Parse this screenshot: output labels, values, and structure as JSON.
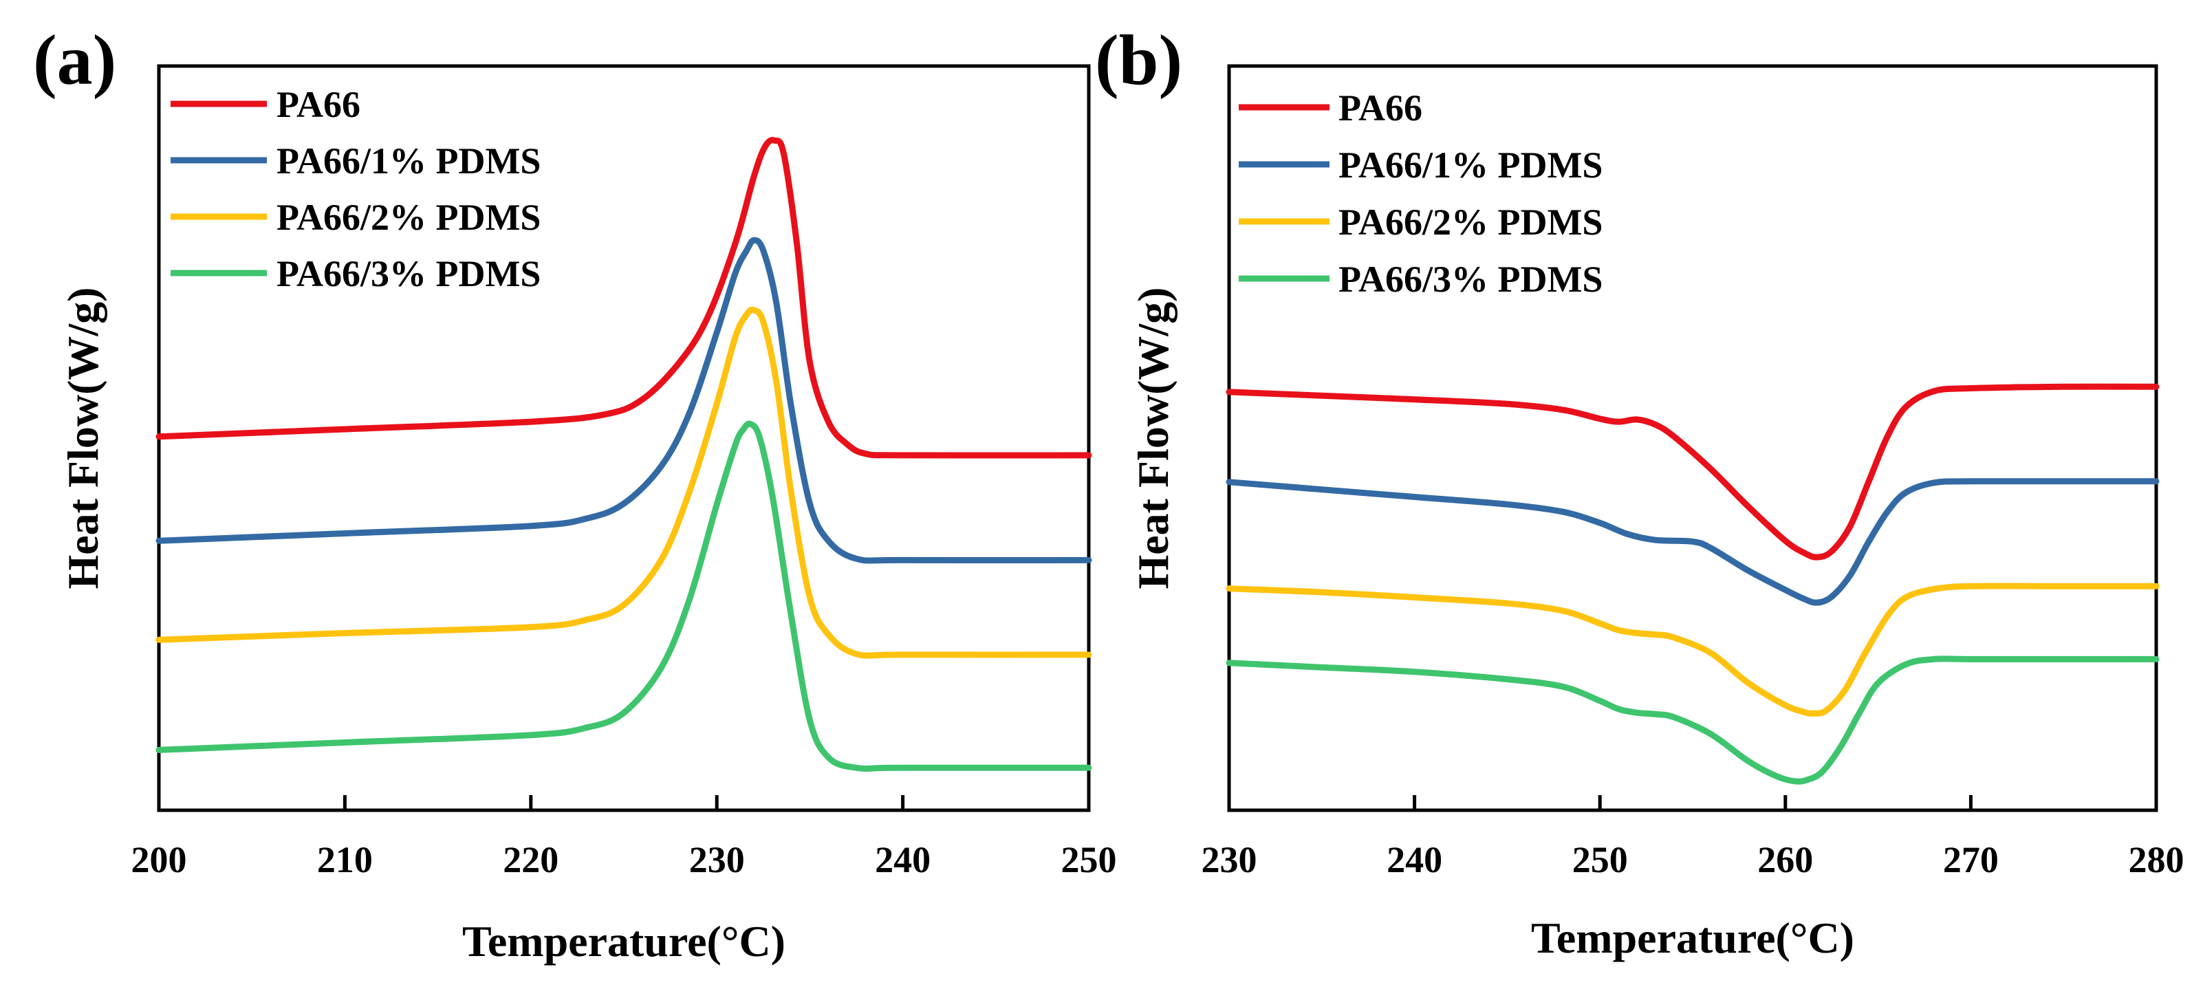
{
  "colors": {
    "PA66": "#e8101a",
    "PA66/1% PDMS": "#336aa4",
    "PA66/2% PDMS": "#ffc20e",
    "PA66/3% PDMS": "#3fc46e"
  },
  "chart_data": [
    {
      "panel": "(a)",
      "type": "line",
      "title": "",
      "xlabel": "Temperature(°C)",
      "ylabel": "Heat Flow(W/g)",
      "xlim": [
        200,
        250
      ],
      "ylim": [
        0,
        100
      ],
      "xticks": [
        200,
        210,
        220,
        230,
        240,
        250
      ],
      "yticks_shown": false,
      "grid": false,
      "legend_position": "top-left",
      "series": [
        {
          "name": "PA66",
          "x": [
            200,
            210,
            220,
            224,
            226,
            228,
            229.5,
            231,
            232,
            232.6,
            233.1,
            233.6,
            234.3,
            235,
            236,
            237,
            238,
            240,
            250
          ],
          "y": [
            50.2,
            51.2,
            52.2,
            53.2,
            55.2,
            60.2,
            66.2,
            76.2,
            85.2,
            89.2,
            90.0,
            88.2,
            76.2,
            60.2,
            52.2,
            49.2,
            47.9,
            47.7,
            47.7
          ]
        },
        {
          "name": "PA66/1% PDMS",
          "x": [
            200,
            210,
            220,
            223,
            225,
            227,
            228.5,
            230,
            231,
            231.6,
            232,
            232.5,
            233.2,
            234,
            235,
            236,
            237.5,
            240,
            250
          ],
          "y": [
            36.2,
            37.2,
            38.2,
            39.2,
            41.2,
            46.2,
            53.2,
            64.2,
            72.2,
            75.2,
            76.6,
            75.2,
            68.2,
            54.2,
            41.2,
            36.2,
            33.8,
            33.6,
            33.6
          ]
        },
        {
          "name": "PA66/2% PDMS",
          "x": [
            200,
            210,
            220,
            223,
            225,
            227,
            228.5,
            230,
            231,
            231.6,
            232,
            232.5,
            233.2,
            234,
            235,
            236,
            237.5,
            240,
            250
          ],
          "y": [
            22.9,
            23.8,
            24.6,
            25.6,
            27.6,
            33.6,
            42.6,
            54.6,
            63.6,
            66.6,
            67.2,
            65.6,
            57.6,
            42.6,
            28.6,
            23.6,
            21.0,
            20.9,
            20.9
          ]
        },
        {
          "name": "PA66/3% PDMS",
          "x": [
            200,
            210,
            220,
            223,
            225,
            227,
            228.5,
            230,
            231,
            231.4,
            231.8,
            232.3,
            233,
            234,
            235,
            236,
            237.5,
            240,
            250
          ],
          "y": [
            8.1,
            9.1,
            10.1,
            11.1,
            13.1,
            19.1,
            28.1,
            41.1,
            49.1,
            51.1,
            51.9,
            50.1,
            42.1,
            26.1,
            12.1,
            7.1,
            5.7,
            5.7,
            5.7
          ]
        }
      ]
    },
    {
      "panel": "(b)",
      "type": "line",
      "title": "",
      "xlabel": "Temperature(°C)",
      "ylabel": "Heat Flow(W/g)",
      "xlim": [
        230,
        280
      ],
      "ylim": [
        0,
        100
      ],
      "xticks": [
        230,
        240,
        250,
        260,
        270,
        280
      ],
      "yticks_shown": false,
      "grid": false,
      "legend_position": "top-left",
      "series": [
        {
          "name": "PA66",
          "x": [
            230,
            235,
            240,
            245,
            248,
            250,
            251,
            252,
            253,
            254,
            256,
            258,
            260,
            261,
            261.7,
            262.5,
            263.5,
            264.5,
            265.5,
            266.5,
            268,
            270,
            275,
            280
          ],
          "y": [
            56.2,
            55.7,
            55.2,
            54.6,
            53.8,
            52.6,
            52.2,
            52.5,
            51.8,
            50.2,
            45.8,
            40.8,
            36.2,
            34.6,
            34.0,
            34.8,
            38.2,
            44.2,
            50.2,
            54.2,
            56.3,
            56.7,
            56.9,
            56.9
          ]
        },
        {
          "name": "PA66/1% PDMS",
          "x": [
            230,
            235,
            240,
            245,
            248,
            250,
            251.5,
            253,
            255,
            256,
            258,
            260,
            261,
            261.7,
            262.5,
            263.5,
            264.5,
            265.5,
            266.5,
            268,
            270,
            275,
            280
          ],
          "y": [
            44.1,
            43.1,
            42.1,
            41.1,
            40.1,
            38.6,
            37.1,
            36.3,
            36.1,
            35.2,
            32.2,
            29.6,
            28.4,
            27.9,
            28.7,
            31.6,
            36.1,
            40.1,
            42.7,
            44.0,
            44.2,
            44.2,
            44.2
          ]
        },
        {
          "name": "PA66/2% PDMS",
          "x": [
            230,
            235,
            240,
            245,
            248,
            250,
            251,
            252,
            253,
            254,
            256,
            258,
            260,
            261,
            261.5,
            262.2,
            263.2,
            264.3,
            265.5,
            266.5,
            268,
            270,
            275,
            280
          ],
          "y": [
            29.8,
            29.3,
            28.6,
            27.8,
            26.8,
            25.1,
            24.2,
            23.8,
            23.6,
            23.2,
            21.1,
            17.1,
            14.1,
            13.2,
            13.0,
            13.4,
            16.1,
            21.1,
            26.1,
            28.6,
            29.7,
            30.1,
            30.1,
            30.1
          ]
        },
        {
          "name": "PA66/3% PDMS",
          "x": [
            230,
            235,
            240,
            245,
            248,
            250,
            251,
            252,
            253,
            254,
            256,
            258,
            259.5,
            260.5,
            261.2,
            262,
            263,
            264,
            265,
            266.5,
            268,
            270,
            275,
            280
          ],
          "y": [
            19.8,
            19.2,
            18.6,
            17.6,
            16.6,
            14.7,
            13.6,
            13.1,
            12.9,
            12.5,
            10.2,
            6.6,
            4.6,
            3.9,
            4.1,
            5.2,
            8.6,
            13.1,
            17.1,
            19.6,
            20.3,
            20.3,
            20.3,
            20.3
          ]
        }
      ]
    }
  ]
}
